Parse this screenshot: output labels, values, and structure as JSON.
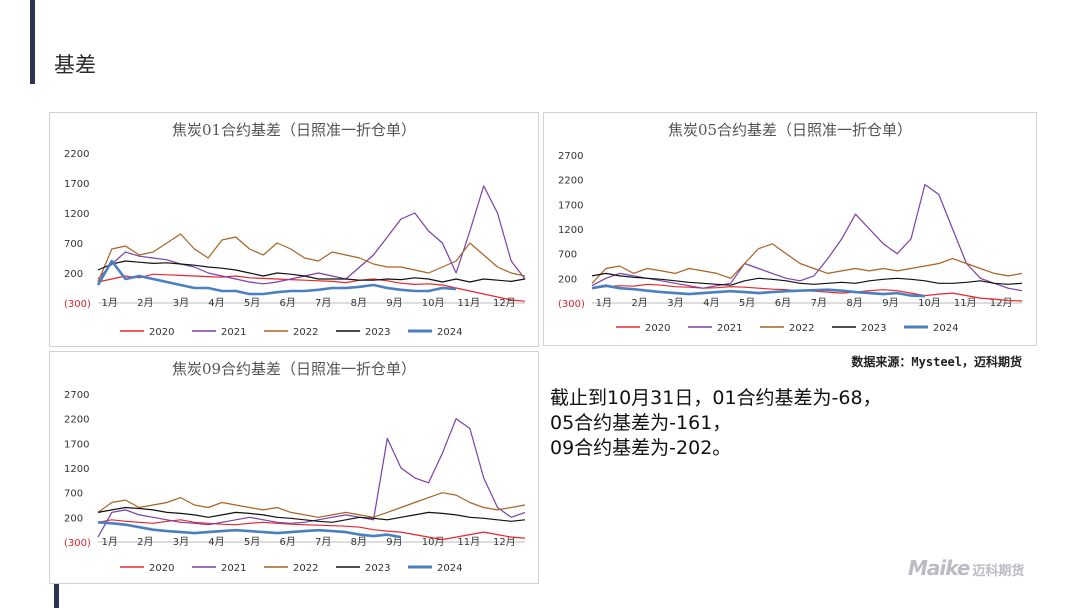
{
  "page": {
    "title": "基差",
    "source": "数据来源：Mysteel，迈科期货",
    "summary": [
      "截止到10月31日，01合约基差为-68，",
      "05合约基差为-161，",
      "09合约基差为-202。"
    ],
    "logo_text": "Maike",
    "logo_cn": "迈科期货"
  },
  "chart_data": [
    {
      "type": "line",
      "title": "焦炭01合约基差（日照准一折仓单）",
      "y_ticks": [
        2200,
        1700,
        1200,
        700,
        200,
        "(300)"
      ],
      "ylim": [
        -300,
        2200
      ],
      "x_ticks": [
        "1月",
        "2月",
        "3月",
        "4月",
        "5月",
        "6月",
        "7月",
        "8月",
        "9月",
        "10月",
        "11月",
        "12月"
      ],
      "legend_position": "bottom",
      "series": [
        {
          "name": "2020",
          "color": "#e8262a",
          "values": [
            50,
            100,
            150,
            120,
            180,
            170,
            160,
            150,
            140,
            130,
            150,
            120,
            110,
            100,
            90,
            80,
            70,
            60,
            40,
            80,
            100,
            70,
            30,
            10,
            20,
            0,
            -50,
            -100,
            -150,
            -200,
            -250,
            -270
          ]
        },
        {
          "name": "2021",
          "color": "#7b3fa7",
          "values": [
            100,
            350,
            550,
            480,
            450,
            420,
            350,
            300,
            200,
            150,
            100,
            50,
            20,
            50,
            100,
            150,
            200,
            150,
            100,
            300,
            500,
            800,
            1100,
            1200,
            900,
            700,
            200,
            900,
            1650,
            1200,
            400,
            100
          ]
        },
        {
          "name": "2022",
          "color": "#a86424",
          "values": [
            50,
            600,
            650,
            500,
            550,
            700,
            850,
            600,
            450,
            750,
            800,
            600,
            500,
            700,
            600,
            450,
            400,
            550,
            500,
            450,
            350,
            300,
            300,
            250,
            200,
            300,
            400,
            700,
            500,
            300,
            200,
            150
          ]
        },
        {
          "name": "2023",
          "color": "#111111",
          "values": [
            250,
            350,
            400,
            380,
            360,
            370,
            350,
            330,
            300,
            280,
            250,
            200,
            150,
            200,
            180,
            150,
            100,
            100,
            100,
            80,
            80,
            100,
            90,
            120,
            100,
            50,
            100,
            50,
            100,
            80,
            60,
            100
          ]
        },
        {
          "name": "2024",
          "color": "#4a7fc1",
          "values": [
            0,
            400,
            100,
            150,
            100,
            50,
            0,
            -50,
            -50,
            -100,
            -100,
            -150,
            -150,
            -120,
            -100,
            -100,
            -80,
            -50,
            -50,
            -30,
            0,
            -50,
            -80,
            -100,
            -100,
            -50,
            -68,
            null,
            null,
            null,
            null,
            null
          ]
        }
      ]
    },
    {
      "type": "line",
      "title": "焦炭05合约基差（日照准一折仓单）",
      "y_ticks": [
        2700,
        2200,
        1700,
        1200,
        700,
        200,
        "(300)"
      ],
      "ylim": [
        -300,
        2700
      ],
      "x_ticks": [
        "1月",
        "2月",
        "3月",
        "4月",
        "5月",
        "6月",
        "7月",
        "8月",
        "9月",
        "10月",
        "11月",
        "12月"
      ],
      "legend_position": "bottom",
      "series": [
        {
          "name": "2020",
          "color": "#e8262a",
          "values": [
            0,
            30,
            50,
            40,
            80,
            60,
            30,
            20,
            0,
            10,
            30,
            20,
            0,
            -20,
            -30,
            -50,
            -60,
            -80,
            -100,
            -80,
            -50,
            -30,
            -50,
            -100,
            -150,
            -120,
            -100,
            -150,
            -200,
            -220,
            -250,
            -260
          ]
        },
        {
          "name": "2021",
          "color": "#7b3fa7",
          "values": [
            50,
            200,
            300,
            250,
            200,
            150,
            100,
            50,
            0,
            50,
            100,
            500,
            400,
            300,
            200,
            150,
            250,
            600,
            1000,
            1500,
            1200,
            900,
            700,
            1000,
            2100,
            1900,
            1200,
            500,
            200,
            100,
            0,
            -50
          ]
        },
        {
          "name": "2022",
          "color": "#a86424",
          "values": [
            100,
            400,
            450,
            300,
            400,
            350,
            300,
            400,
            350,
            300,
            200,
            500,
            800,
            900,
            700,
            500,
            400,
            300,
            350,
            400,
            350,
            400,
            350,
            400,
            450,
            500,
            600,
            500,
            400,
            300,
            250,
            300
          ]
        },
        {
          "name": "2023",
          "color": "#111111",
          "values": [
            250,
            300,
            250,
            220,
            200,
            180,
            150,
            120,
            100,
            80,
            60,
            150,
            200,
            180,
            150,
            100,
            80,
            100,
            120,
            100,
            150,
            180,
            200,
            180,
            150,
            100,
            100,
            120,
            150,
            100,
            80,
            100
          ]
        },
        {
          "name": "2024",
          "color": "#4a7fc1",
          "values": [
            0,
            50,
            0,
            -20,
            -50,
            -80,
            -100,
            -120,
            -100,
            -80,
            -60,
            -80,
            -100,
            -80,
            -60,
            -50,
            -40,
            -30,
            -50,
            -80,
            -100,
            -120,
            -100,
            -150,
            -161,
            null,
            null,
            null,
            null,
            null,
            null,
            null
          ]
        }
      ]
    },
    {
      "type": "line",
      "title": "焦炭09合约基差（日照准一折仓单）",
      "y_ticks": [
        2700,
        2200,
        1700,
        1200,
        700,
        200,
        "(300)"
      ],
      "ylim": [
        -300,
        2700
      ],
      "x_ticks": [
        "1月",
        "2月",
        "3月",
        "4月",
        "5月",
        "6月",
        "7月",
        "8月",
        "9月",
        "10月",
        "11月",
        "12月"
      ],
      "legend_position": "bottom",
      "series": [
        {
          "name": "2020",
          "color": "#e8262a",
          "values": [
            100,
            150,
            120,
            100,
            80,
            120,
            150,
            100,
            80,
            60,
            50,
            80,
            100,
            80,
            60,
            50,
            40,
            30,
            20,
            0,
            -50,
            -80,
            -100,
            -150,
            -200,
            -250,
            -200,
            -150,
            -100,
            -150,
            -200,
            -220
          ]
        },
        {
          "name": "2021",
          "color": "#7b3fa7",
          "values": [
            -200,
            300,
            350,
            250,
            200,
            150,
            100,
            80,
            50,
            100,
            150,
            200,
            150,
            100,
            80,
            100,
            150,
            200,
            250,
            200,
            150,
            1800,
            1200,
            1000,
            900,
            1500,
            2200,
            2000,
            1000,
            400,
            200,
            300
          ]
        },
        {
          "name": "2022",
          "color": "#a86424",
          "values": [
            300,
            500,
            550,
            400,
            450,
            500,
            600,
            450,
            400,
            500,
            450,
            400,
            350,
            400,
            300,
            250,
            200,
            250,
            300,
            250,
            200,
            300,
            400,
            500,
            600,
            700,
            650,
            500,
            400,
            350,
            400,
            450
          ]
        },
        {
          "name": "2023",
          "color": "#111111",
          "values": [
            300,
            350,
            400,
            380,
            350,
            300,
            280,
            250,
            200,
            250,
            300,
            280,
            250,
            200,
            180,
            150,
            120,
            100,
            150,
            200,
            180,
            150,
            200,
            250,
            300,
            280,
            250,
            200,
            180,
            150,
            120,
            150
          ]
        },
        {
          "name": "2024",
          "color": "#4a7fc1",
          "values": [
            100,
            80,
            50,
            0,
            -50,
            -80,
            -100,
            -120,
            -100,
            -80,
            -60,
            -80,
            -100,
            -120,
            -100,
            -80,
            -60,
            -80,
            -100,
            -150,
            -180,
            -150,
            -202,
            null,
            null,
            null,
            null,
            null,
            null,
            null,
            null,
            null
          ]
        }
      ]
    }
  ]
}
